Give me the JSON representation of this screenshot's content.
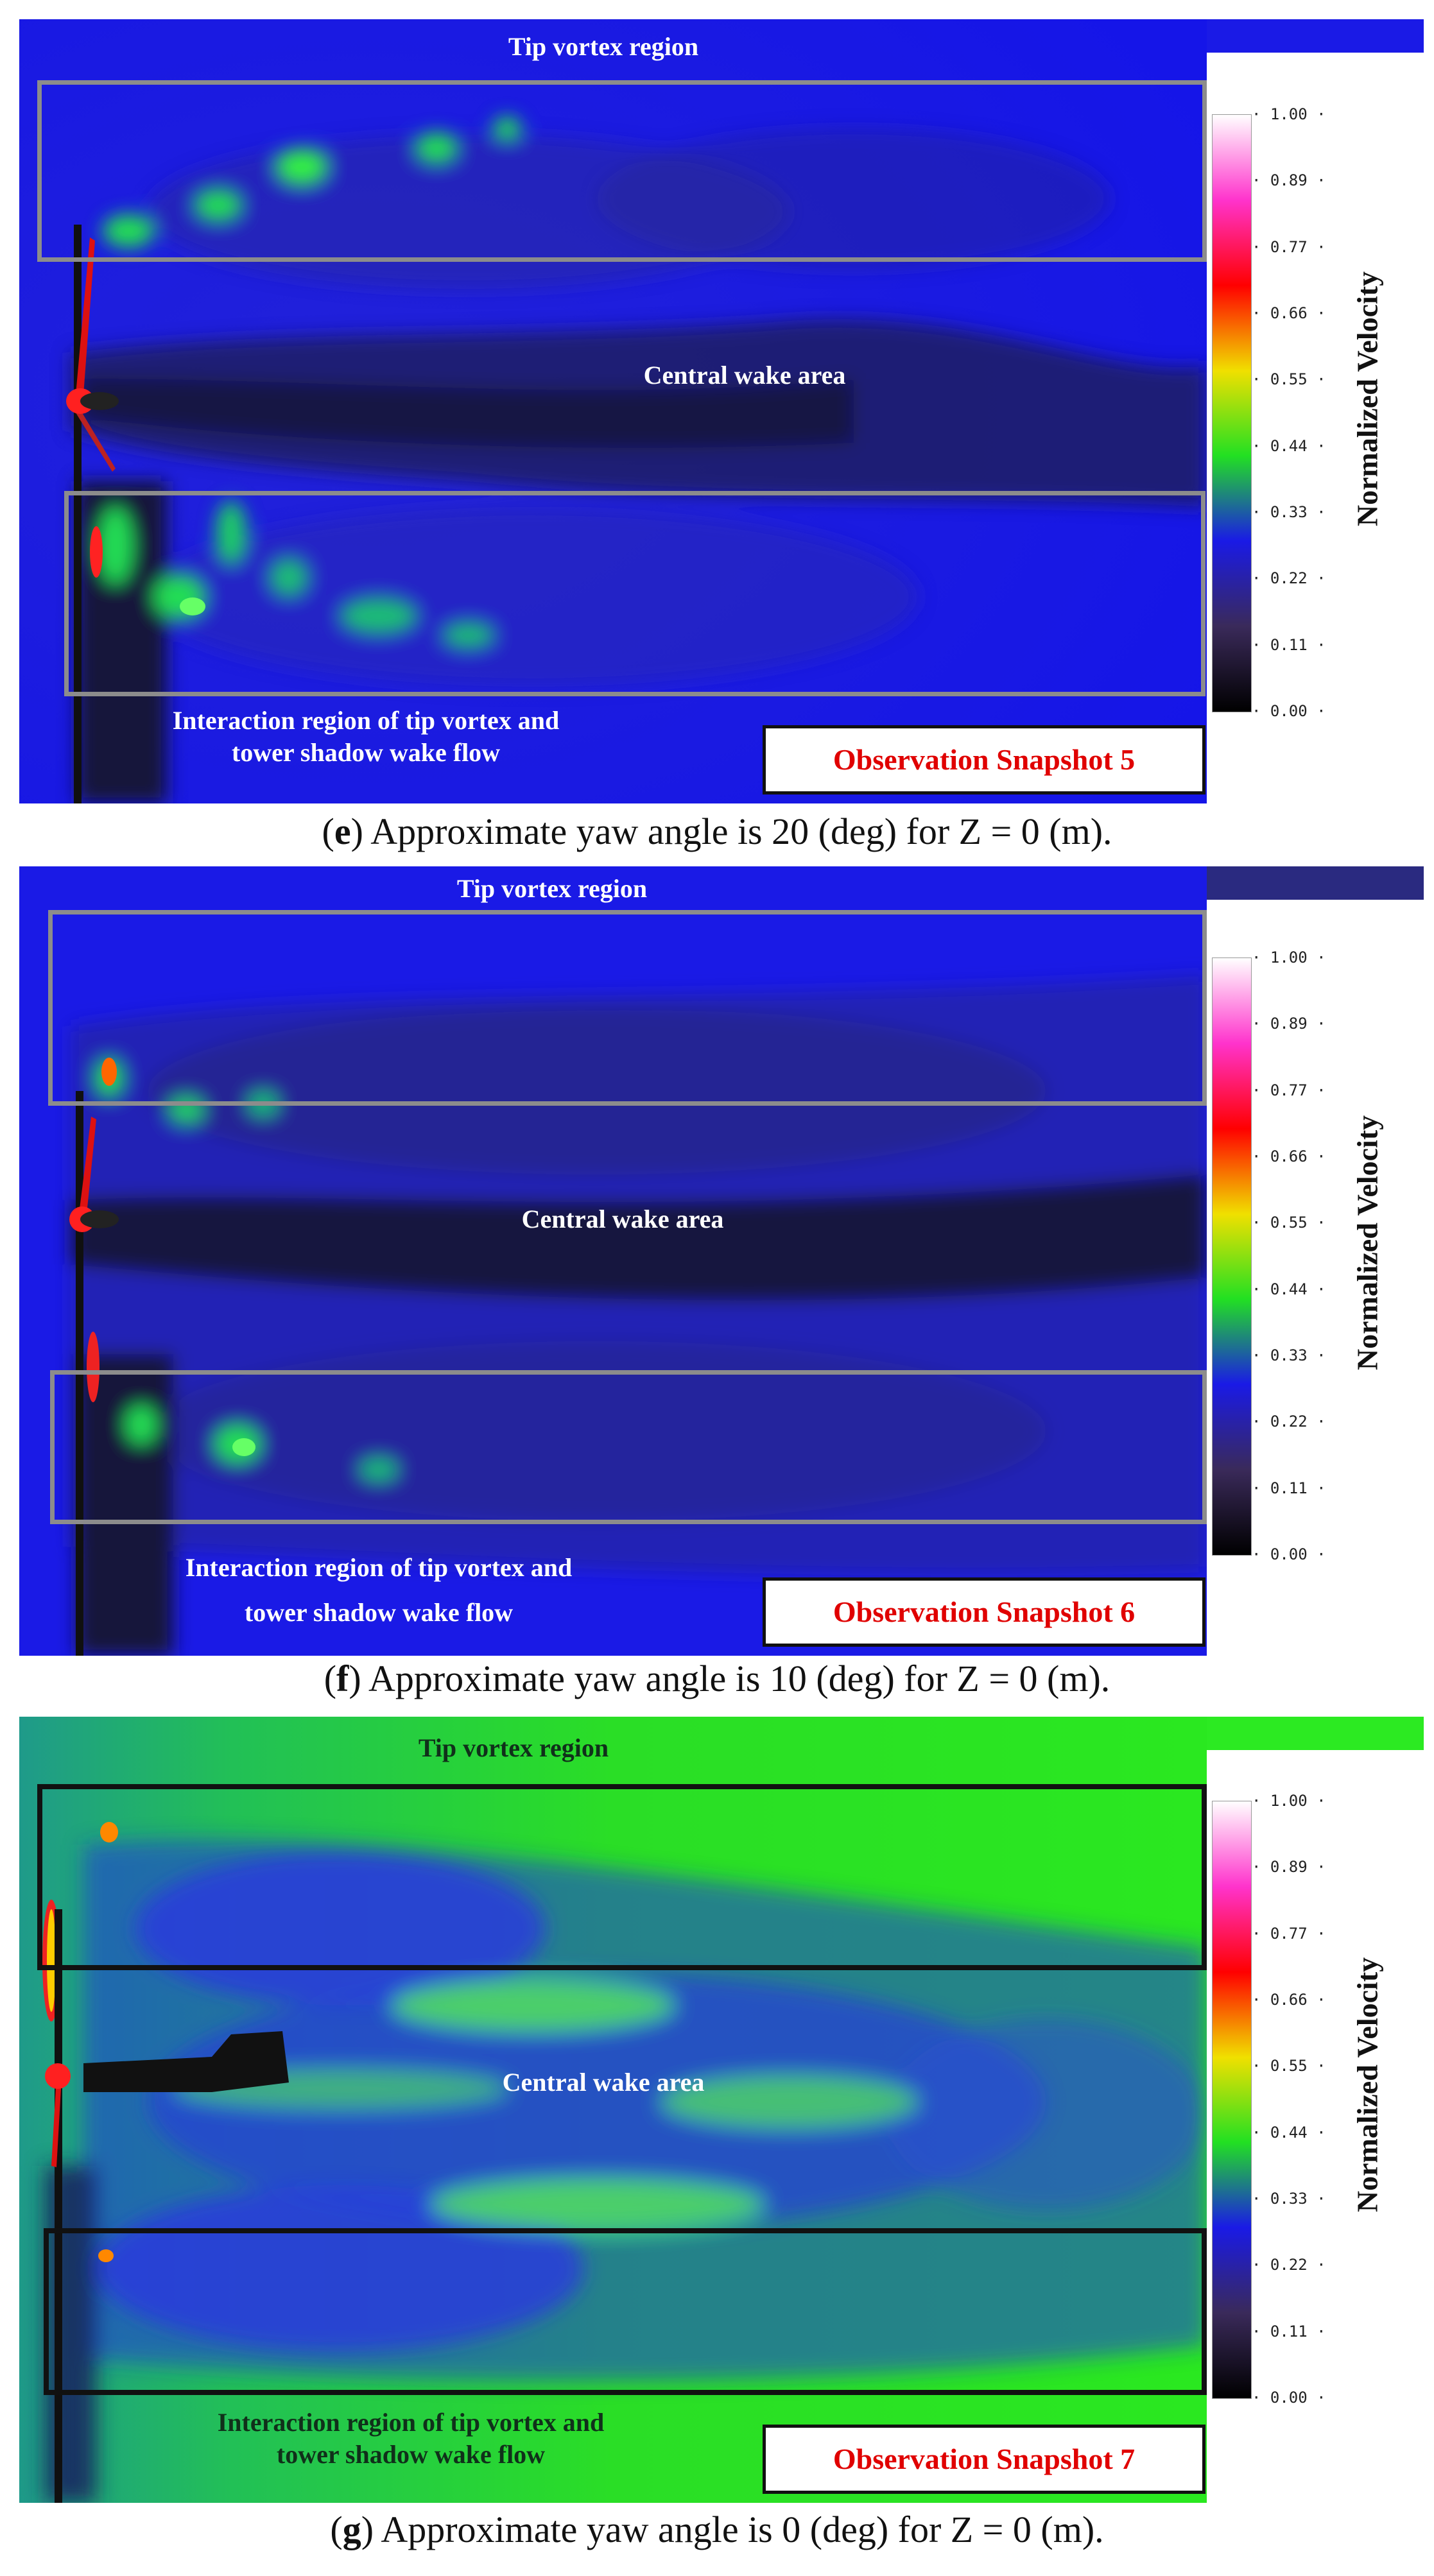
{
  "panels": [
    {
      "id": "e",
      "tip_label": "Tip vortex region",
      "central_label": "Central wake area",
      "interaction_label_line1": "Interaction region of tip vortex and",
      "interaction_label_line2": "tower shadow wake flow",
      "snapshot_label": "Observation Snapshot 5",
      "caption_letter": "e",
      "caption_text": "Approximate yaw angle is 20 (deg) for Z = 0 (m).",
      "background_color": "#1a1ae6"
    },
    {
      "id": "f",
      "tip_label": "Tip vortex region",
      "central_label": "Central wake area",
      "interaction_label_line1": "Interaction region of tip vortex and",
      "interaction_label_line2": "tower shadow wake flow",
      "snapshot_label": "Observation Snapshot 6",
      "caption_letter": "f",
      "caption_text": "Approximate yaw angle is 10 (deg) for Z = 0 (m).",
      "background_color": "#1a1ae6"
    },
    {
      "id": "g",
      "tip_label": "Tip vortex region",
      "central_label": "Central wake area",
      "interaction_label_line1": "Interaction region of tip vortex and",
      "interaction_label_line2": "tower shadow wake flow",
      "snapshot_label": "Observation Snapshot 7",
      "caption_letter": "g",
      "caption_text": "Approximate yaw angle is 0 (deg) for Z = 0 (m).",
      "background_color": "#2cea22"
    }
  ],
  "colorbar": {
    "title": "Normalized Velocity",
    "ticks": [
      "1.00",
      "0.89",
      "0.77",
      "0.66",
      "0.55",
      "0.44",
      "0.33",
      "0.22",
      "0.11",
      "0.00"
    ],
    "colors": [
      "#000000",
      "#3a2a5a",
      "#1a1ae6",
      "#22e022",
      "#f0e000",
      "#ff0000",
      "#ff33cc",
      "#ffffff"
    ]
  }
}
